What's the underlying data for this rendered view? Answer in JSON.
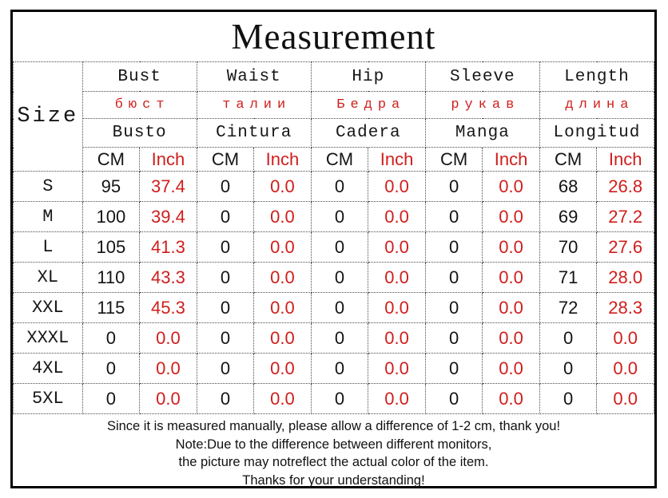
{
  "title": "Measurement",
  "size_header": "Size",
  "units": {
    "cm": "CM",
    "inch": "Inch"
  },
  "columns": [
    {
      "en": "Bust",
      "ru": "бюст",
      "es": "Busto"
    },
    {
      "en": "Waist",
      "ru": "талии",
      "es": "Cintura"
    },
    {
      "en": "Hip",
      "ru": "Бедра",
      "es": "Cadera"
    },
    {
      "en": "Sleeve",
      "ru": "рукав",
      "es": "Manga"
    },
    {
      "en": "Length",
      "ru": "длина",
      "es": "Longitud"
    }
  ],
  "rows": [
    {
      "size": "S",
      "values": [
        "95",
        "37.4",
        "0",
        "0.0",
        "0",
        "0.0",
        "0",
        "0.0",
        "68",
        "26.8"
      ]
    },
    {
      "size": "M",
      "values": [
        "100",
        "39.4",
        "0",
        "0.0",
        "0",
        "0.0",
        "0",
        "0.0",
        "69",
        "27.2"
      ]
    },
    {
      "size": "L",
      "values": [
        "105",
        "41.3",
        "0",
        "0.0",
        "0",
        "0.0",
        "0",
        "0.0",
        "70",
        "27.6"
      ]
    },
    {
      "size": "XL",
      "values": [
        "110",
        "43.3",
        "0",
        "0.0",
        "0",
        "0.0",
        "0",
        "0.0",
        "71",
        "28.0"
      ]
    },
    {
      "size": "XXL",
      "values": [
        "115",
        "45.3",
        "0",
        "0.0",
        "0",
        "0.0",
        "0",
        "0.0",
        "72",
        "28.3"
      ]
    },
    {
      "size": "XXXL",
      "values": [
        "0",
        "0.0",
        "0",
        "0.0",
        "0",
        "0.0",
        "0",
        "0.0",
        "0",
        "0.0"
      ]
    },
    {
      "size": "4XL",
      "values": [
        "0",
        "0.0",
        "0",
        "0.0",
        "0",
        "0.0",
        "0",
        "0.0",
        "0",
        "0.0"
      ]
    },
    {
      "size": "5XL",
      "values": [
        "0",
        "0.0",
        "0",
        "0.0",
        "0",
        "0.0",
        "0",
        "0.0",
        "0",
        "0.0"
      ]
    }
  ],
  "notes": {
    "lines": [
      "Since it is measured manually, please allow a difference of 1-2 cm, thank you!",
      "Note:Due to the difference between different monitors,",
      "the picture may notreflect the actual color of the item.",
      "Thanks for your understanding!"
    ]
  },
  "colors": {
    "accent_red": "#d01e1c",
    "text_black": "#141414",
    "border_black": "#000000"
  }
}
